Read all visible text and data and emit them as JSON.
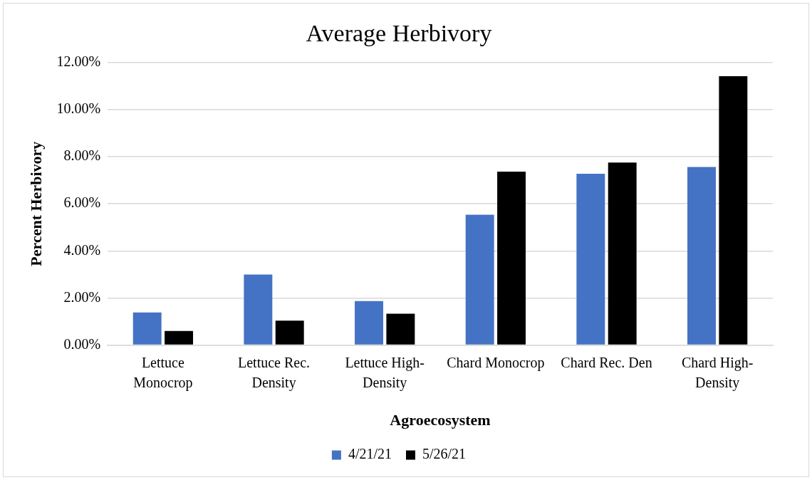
{
  "chart_data": {
    "type": "bar",
    "title": "Average Herbivory",
    "xlabel": "Agroecosystem",
    "ylabel": "Percent Herbivory",
    "categories": [
      "Lettuce Monocrop",
      "Lettuce Rec. Density",
      "Lettuce High-Density",
      "Chard Monocrop",
      "Chard Rec. Den",
      "Chard High-Density"
    ],
    "series": [
      {
        "name": "4/21/21",
        "color": "#4472c4",
        "values": [
          1.39,
          3.0,
          1.87,
          5.54,
          7.28,
          7.56
        ]
      },
      {
        "name": "5/26/21",
        "color": "#000000",
        "values": [
          0.6,
          1.04,
          1.33,
          7.37,
          7.75,
          11.42
        ]
      }
    ],
    "ylim": [
      0,
      12
    ],
    "yticks": [
      {
        "value": 0,
        "label": "0.00%"
      },
      {
        "value": 2,
        "label": "2.00%"
      },
      {
        "value": 4,
        "label": "4.00%"
      },
      {
        "value": 6,
        "label": "6.00%"
      },
      {
        "value": 8,
        "label": "8.00%"
      },
      {
        "value": 10,
        "label": "10.00%"
      },
      {
        "value": 12,
        "label": "12.00%"
      }
    ],
    "grid": "y",
    "legend": "bottom"
  }
}
